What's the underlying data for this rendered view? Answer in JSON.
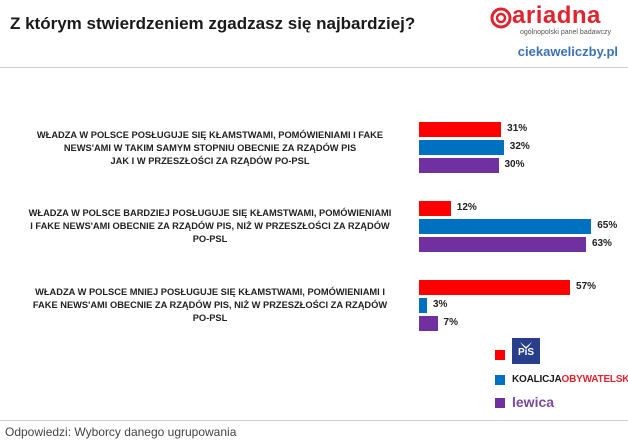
{
  "title": "Z którym stwierdzeniem zgadzasz się najbardziej?",
  "logo": {
    "word": "ariadna",
    "subtitle": "ogólnopolski panel badawczy"
  },
  "site": "ciekaweliczby.pl",
  "footer": "Odpowiedzi: Wyborcy danego ugrupowania",
  "legend": {
    "pis": {
      "label": "PiS",
      "color": "#ff0000"
    },
    "ko": {
      "label_part1": "KOALICJA",
      "label_part2": "OBYWATELSKA",
      "color": "#0070c0"
    },
    "lewica": {
      "label": "lewica",
      "color": "#7030a0"
    }
  },
  "chart_data": {
    "type": "bar",
    "orientation": "horizontal",
    "title": "Z którym stwierdzeniem zgadzasz się najbardziej?",
    "categories": [
      "WŁADZA W POLSCE POSŁUGUJE SIĘ KŁAMSTWAMI, POMÓWIENIAMI I FAKE NEWS'AMI W TAKIM SAMYM STOPNIU OBECNIE ZA RZĄDÓW PIS JAK I W PRZESZŁOŚCI ZA RZĄDÓW PO-PSL",
      "WŁADZA W POLSCE BARDZIEJ POSŁUGUJE SIĘ KŁAMSTWAMI, POMÓWIENIAMI I FAKE NEWS'AMI OBECNIE ZA RZĄDÓW PIS, NIŻ W PRZESZŁOŚCI ZA RZĄDÓW PO-PSL",
      "WŁADZA W POLSCE MNIEJ POSŁUGUJE SIĘ KŁAMSTWAMI, POMÓWIENIAMI I FAKE NEWS'AMI OBECNIE ZA RZĄDÓW PIS, NIŻ W PRZESZŁOŚCI ZA RZĄDÓW PO-PSL"
    ],
    "category_lines": [
      [
        "WŁADZA W POLSCE POSŁUGUJE SIĘ KŁAMSTWAMI, POMÓWIENIAMI  I FAKE",
        "NEWS'AMI W TAKIM SAMYM STOPNIU OBECNIE ZA RZĄDÓW PIS",
        "JAK I W PRZESZŁOŚCI ZA RZĄDÓW PO-PSL"
      ],
      [
        "WŁADZA W POLSCE BARDZIEJ POSŁUGUJE SIĘ KŁAMSTWAMI, POMÓWIENIAMI",
        "I FAKE NEWS'AMI OBECNIE ZA RZĄDÓW PIS, NIŻ W PRZESZŁOŚCI ZA RZĄDÓW",
        "PO-PSL"
      ],
      [
        "WŁADZA W POLSCE MNIEJ POSŁUGUJE SIĘ KŁAMSTWAMI, POMÓWIENIAMI I",
        "FAKE NEWS'AMI OBECNIE ZA RZĄDÓW PIS, NIŻ W PRZESZŁOŚCI ZA RZĄDÓW",
        "PO-PSL"
      ]
    ],
    "series": [
      {
        "name": "PiS",
        "color": "#ff0000",
        "values": [
          31,
          12,
          57
        ]
      },
      {
        "name": "KOALICJA OBYWATELSKA",
        "color": "#0070c0",
        "values": [
          32,
          65,
          3
        ]
      },
      {
        "name": "lewica",
        "color": "#7030a0",
        "values": [
          30,
          63,
          7
        ]
      }
    ],
    "value_suffix": "%",
    "xlim": [
      0,
      70
    ],
    "grid": false,
    "legend_position": "bottom-right"
  }
}
